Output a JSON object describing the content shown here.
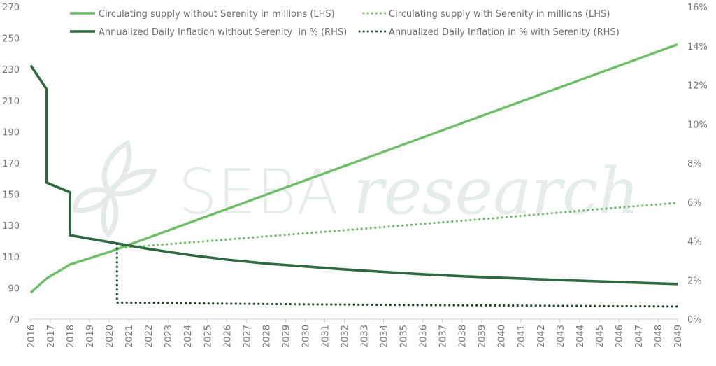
{
  "chart_data": {
    "type": "line",
    "title": "",
    "watermark": "SEBAresearch",
    "watermark_parts": [
      "SEBA",
      "research"
    ],
    "xlabel": "",
    "ylabel_left": "",
    "ylabel_right": "",
    "x_ticks": [
      "2016",
      "2017",
      "2018",
      "2019",
      "2020",
      "2021",
      "2022",
      "2023",
      "2024",
      "2025",
      "2026",
      "2027",
      "2028",
      "2029",
      "2030",
      "2031",
      "2032",
      "2033",
      "2034",
      "2035",
      "2036",
      "2037",
      "2038",
      "2039",
      "2040",
      "2041",
      "2042",
      "2043",
      "2044",
      "2045",
      "2046",
      "2047",
      "2048",
      "2049"
    ],
    "xlim": [
      2016,
      2049
    ],
    "ylim_left": [
      70,
      270
    ],
    "y_ticks_left": [
      "270",
      "250",
      "230",
      "210",
      "190",
      "170",
      "150",
      "130",
      "110",
      "90",
      "70"
    ],
    "y_tick_values_left": [
      270,
      250,
      230,
      210,
      190,
      170,
      150,
      130,
      110,
      90,
      70
    ],
    "ylim_right": [
      0,
      16
    ],
    "y_ticks_right": [
      "16%",
      "14%",
      "12%",
      "10%",
      "8%",
      "6%",
      "4%",
      "2%",
      "0%"
    ],
    "y_tick_values_right": [
      16,
      14,
      12,
      10,
      8,
      6,
      4,
      2,
      0
    ],
    "legend_position": "top",
    "grid": false,
    "series": [
      {
        "name": "Circulating supply without Serenity in millions (LHS)",
        "axis": "left",
        "style": "solid",
        "color": "#6dbf67",
        "points": [
          [
            2016,
            87
          ],
          [
            2016.8,
            96
          ],
          [
            2018,
            105
          ],
          [
            2020,
            113
          ],
          [
            2049,
            246
          ]
        ]
      },
      {
        "name": "Circulating supply with Serenity in millions (LHS)",
        "axis": "left",
        "style": "dotted",
        "color": "#6dbf67",
        "points": [
          [
            2020.4,
            115.5
          ],
          [
            2025,
            120
          ],
          [
            2030,
            125
          ],
          [
            2035,
            130
          ],
          [
            2040,
            135
          ],
          [
            2045,
            140.5
          ],
          [
            2049,
            144.5
          ]
        ]
      },
      {
        "name": "Annualized Daily Inflation without Serenity  in % (RHS)",
        "axis": "right",
        "style": "solid",
        "color": "#2d6a3e",
        "points": [
          [
            2016,
            13.0
          ],
          [
            2016.8,
            11.8
          ],
          [
            2016.8,
            7.0
          ],
          [
            2018,
            6.5
          ],
          [
            2018,
            4.3
          ],
          [
            2020,
            3.95
          ],
          [
            2022,
            3.6
          ],
          [
            2024,
            3.3
          ],
          [
            2026,
            3.05
          ],
          [
            2028,
            2.85
          ],
          [
            2030,
            2.7
          ],
          [
            2032,
            2.55
          ],
          [
            2034,
            2.42
          ],
          [
            2036,
            2.3
          ],
          [
            2038,
            2.2
          ],
          [
            2040,
            2.12
          ],
          [
            2042,
            2.04
          ],
          [
            2044,
            1.97
          ],
          [
            2046,
            1.9
          ],
          [
            2049,
            1.8
          ]
        ]
      },
      {
        "name": "Annualized Daily Inflation in % with Serenity (RHS)",
        "axis": "right",
        "style": "dotted",
        "color": "#1f4a2c",
        "points": [
          [
            2020.4,
            3.85
          ],
          [
            2020.4,
            0.85
          ],
          [
            2025,
            0.8
          ],
          [
            2030,
            0.76
          ],
          [
            2035,
            0.73
          ],
          [
            2040,
            0.7
          ],
          [
            2045,
            0.67
          ],
          [
            2049,
            0.65
          ]
        ]
      }
    ]
  }
}
